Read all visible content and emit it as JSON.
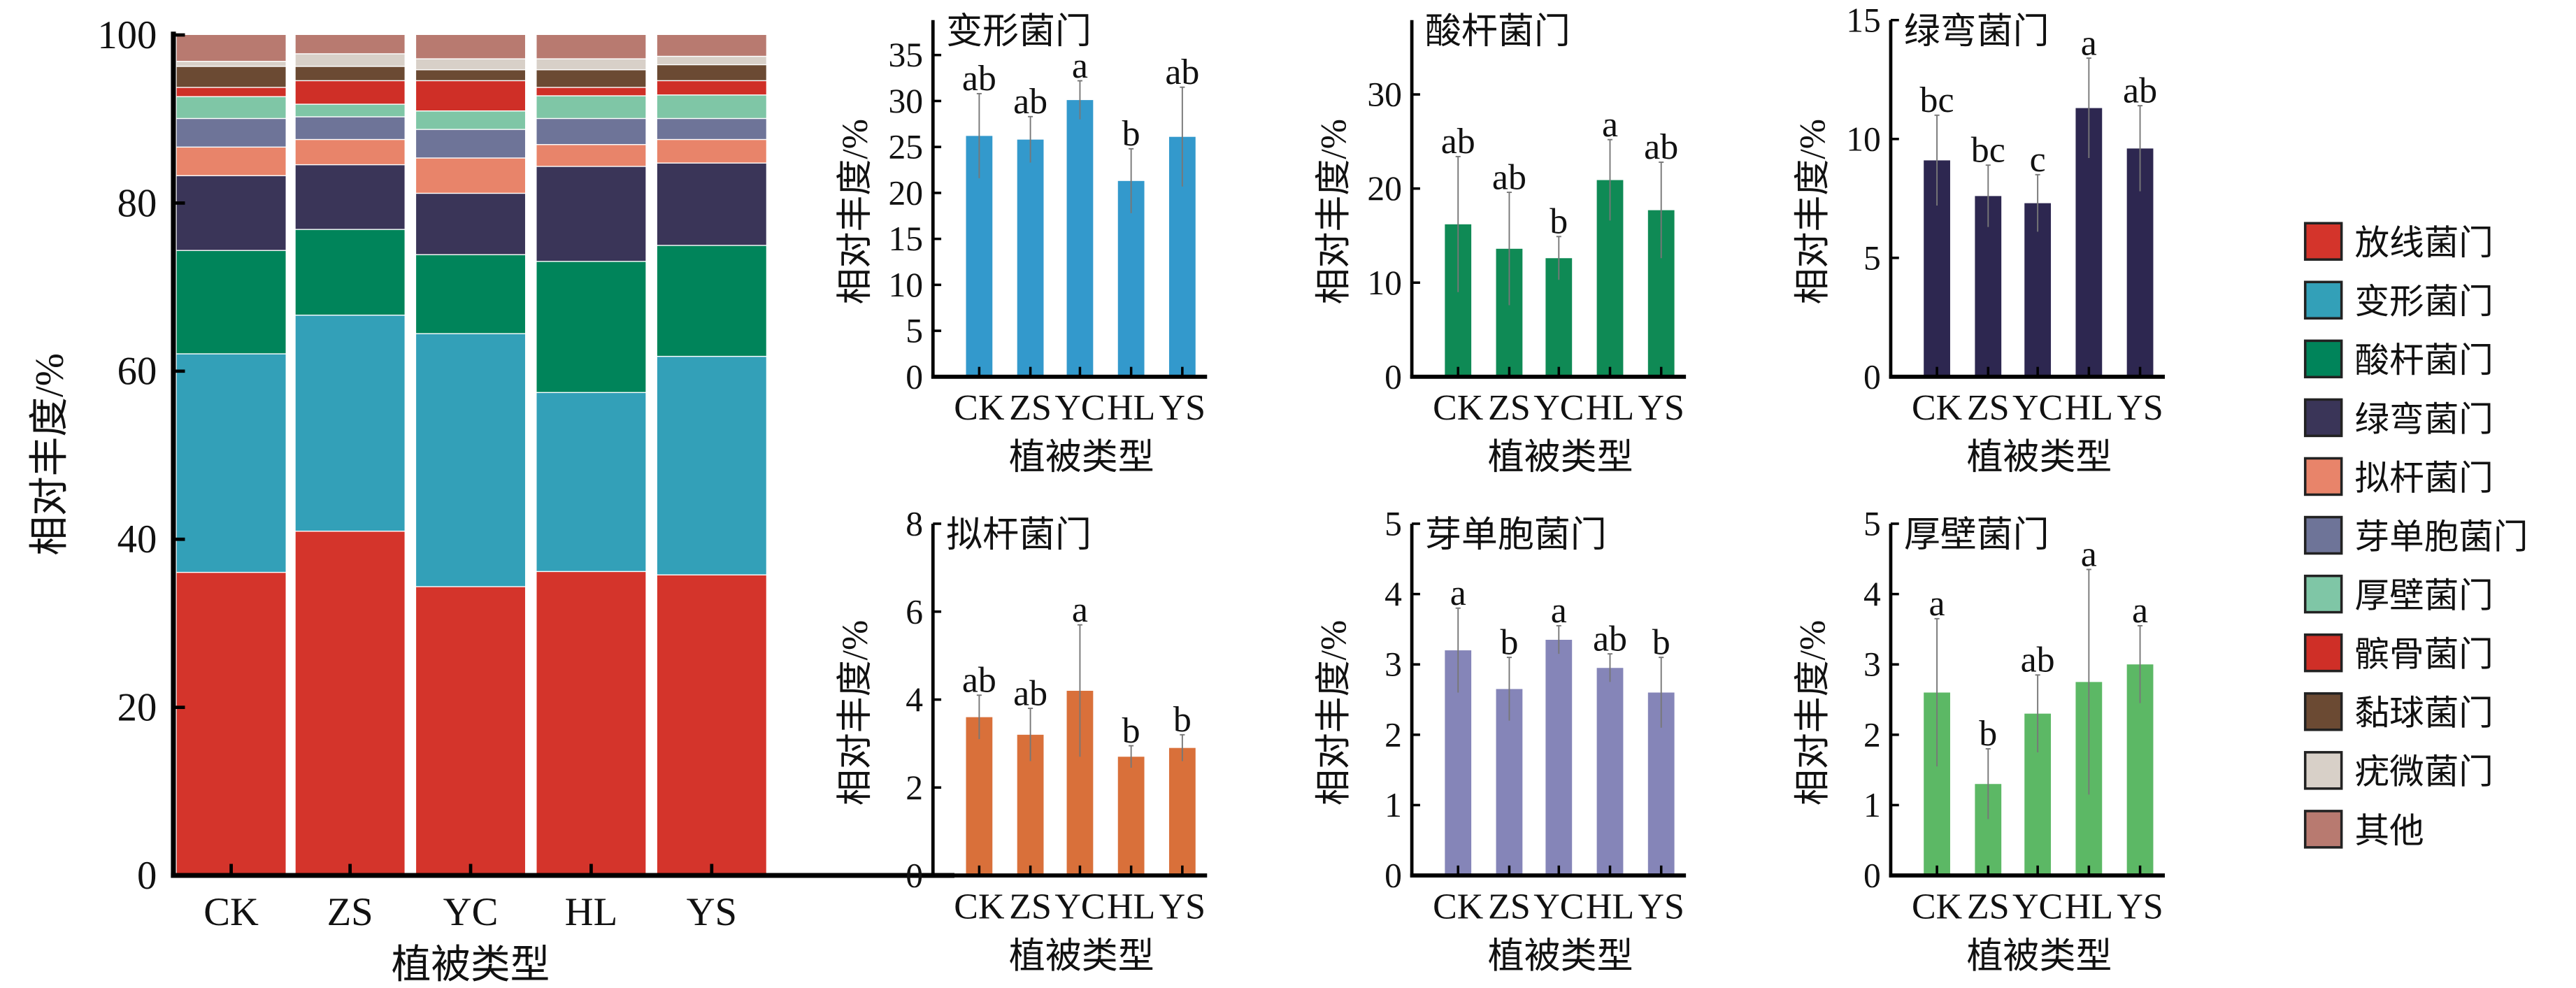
{
  "chart_data": [
    {
      "type": "bar",
      "stacked": true,
      "title": "",
      "xlabel": "植被类型",
      "ylabel": "相对丰度/%",
      "ylim": [
        0,
        100
      ],
      "yticks": [
        0,
        20,
        40,
        60,
        80,
        100
      ],
      "categories": [
        "CK",
        "ZS",
        "YC",
        "HL",
        "YS"
      ],
      "legend_position": "right",
      "series": [
        {
          "name": "放线菌门",
          "color": "#d4342b",
          "values": [
            36.0,
            40.9,
            34.3,
            36.1,
            35.7
          ]
        },
        {
          "name": "变形菌门",
          "color": "#33a0b8",
          "values": [
            26.0,
            25.7,
            30.1,
            21.3,
            26.0
          ]
        },
        {
          "name": "酸杆菌门",
          "color": "#00845a",
          "values": [
            12.3,
            10.2,
            9.4,
            15.6,
            13.2
          ]
        },
        {
          "name": "绿弯菌门",
          "color": "#3a3558",
          "values": [
            8.9,
            7.7,
            7.3,
            11.3,
            9.8
          ]
        },
        {
          "name": "拟杆菌门",
          "color": "#e8846a",
          "values": [
            3.4,
            3.0,
            4.2,
            2.6,
            2.8
          ]
        },
        {
          "name": "芽单胞菌门",
          "color": "#6e7498",
          "values": [
            3.4,
            2.7,
            3.4,
            3.1,
            2.5
          ]
        },
        {
          "name": "厚壁菌门",
          "color": "#7fc6a6",
          "values": [
            2.6,
            1.5,
            2.2,
            2.7,
            2.8
          ]
        },
        {
          "name": "髌骨菌门",
          "color": "#cf2f27",
          "values": [
            1.1,
            2.8,
            3.6,
            1.0,
            1.7
          ]
        },
        {
          "name": "黏球菌门",
          "color": "#6b4a33",
          "values": [
            2.5,
            1.7,
            1.3,
            2.1,
            1.9
          ]
        },
        {
          "name": "疣微菌门",
          "color": "#d8d0c8",
          "values": [
            0.6,
            1.5,
            1.3,
            1.3,
            1.0
          ]
        },
        {
          "name": "其他",
          "color": "#b87a70",
          "values": [
            3.2,
            2.3,
            2.9,
            2.9,
            2.6
          ]
        }
      ]
    },
    {
      "type": "bar",
      "title": "变形菌门",
      "xlabel": "植被类型",
      "ylabel": "相对丰度/%",
      "color": "#3399cc",
      "categories": [
        "CK",
        "ZS",
        "YC",
        "HL",
        "YS"
      ],
      "values": [
        26.2,
        25.8,
        30.1,
        21.3,
        26.1
      ],
      "errors": [
        4.6,
        2.5,
        2.1,
        3.5,
        5.4
      ],
      "letters": [
        "ab",
        "ab",
        "a",
        "b",
        "ab"
      ],
      "yticks": [
        0,
        5,
        10,
        15,
        20,
        25,
        30,
        35
      ],
      "ylim": [
        0,
        38.8
      ]
    },
    {
      "type": "bar",
      "title": "酸杆菌门",
      "xlabel": "植被类型",
      "ylabel": "相对丰度/%",
      "color": "#0f8a55",
      "categories": [
        "CK",
        "ZS",
        "YC",
        "HL",
        "YS"
      ],
      "values": [
        16.2,
        13.6,
        12.6,
        20.9,
        17.7
      ],
      "errors": [
        7.2,
        6.0,
        2.3,
        4.3,
        5.1
      ],
      "letters": [
        "ab",
        "ab",
        "b",
        "a",
        "ab"
      ],
      "yticks": [
        0,
        10,
        20,
        30
      ],
      "ylim": [
        0,
        37.9
      ]
    },
    {
      "type": "bar",
      "title": "绿弯菌门",
      "xlabel": "植被类型",
      "ylabel": "相对丰度/%",
      "color": "#2d2750",
      "categories": [
        "CK",
        "ZS",
        "YC",
        "HL",
        "YS"
      ],
      "values": [
        9.1,
        7.6,
        7.3,
        11.3,
        9.6
      ],
      "errors": [
        1.9,
        1.3,
        1.2,
        2.1,
        1.8
      ],
      "letters": [
        "bc",
        "bc",
        "c",
        "a",
        "ab"
      ],
      "yticks": [
        0,
        5,
        10,
        15
      ],
      "ylim": [
        0,
        15
      ]
    },
    {
      "type": "bar",
      "title": "拟杆菌门",
      "xlabel": "植被类型",
      "ylabel": "相对丰度/%",
      "color": "#d9703a",
      "categories": [
        "CK",
        "ZS",
        "YC",
        "HL",
        "YS"
      ],
      "values": [
        3.6,
        3.2,
        4.2,
        2.7,
        2.9
      ],
      "errors": [
        0.5,
        0.6,
        1.5,
        0.25,
        0.3
      ],
      "letters": [
        "ab",
        "ab",
        "a",
        "b",
        "b"
      ],
      "yticks": [
        0,
        2,
        4,
        6,
        8
      ],
      "ylim": [
        0,
        8
      ]
    },
    {
      "type": "bar",
      "title": "芽单胞菌门",
      "xlabel": "植被类型",
      "ylabel": "相对丰度/%",
      "color": "#8585b8",
      "categories": [
        "CK",
        "ZS",
        "YC",
        "HL",
        "YS"
      ],
      "values": [
        3.2,
        2.65,
        3.35,
        2.95,
        2.6
      ],
      "errors": [
        0.6,
        0.45,
        0.2,
        0.2,
        0.5
      ],
      "letters": [
        "a",
        "b",
        "a",
        "ab",
        "b"
      ],
      "yticks": [
        0,
        1,
        2,
        3,
        4,
        5
      ],
      "ylim": [
        0,
        5
      ]
    },
    {
      "type": "bar",
      "title": "厚壁菌门",
      "xlabel": "植被类型",
      "ylabel": "相对丰度/%",
      "color": "#5cb865",
      "categories": [
        "CK",
        "ZS",
        "YC",
        "HL",
        "YS"
      ],
      "values": [
        2.6,
        1.3,
        2.3,
        2.75,
        3.0
      ],
      "errors": [
        1.05,
        0.5,
        0.55,
        1.6,
        0.55
      ],
      "letters": [
        "a",
        "b",
        "ab",
        "a",
        "a"
      ],
      "yticks": [
        0,
        1,
        2,
        3,
        4,
        5
      ],
      "ylim": [
        0,
        5
      ]
    }
  ]
}
